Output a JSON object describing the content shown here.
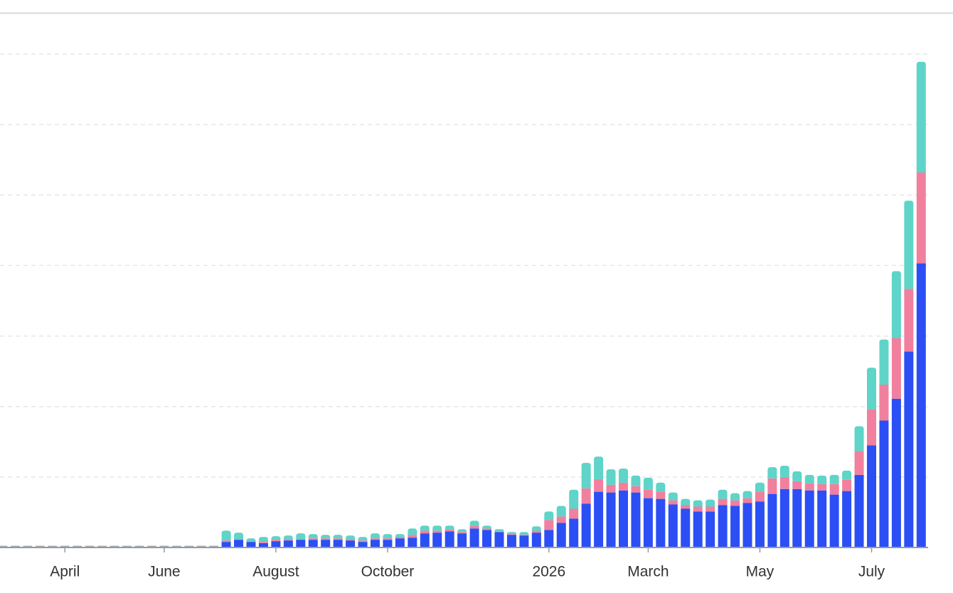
{
  "chart_data": {
    "type": "stacked-bar",
    "categories": [
      null,
      null,
      null,
      null,
      null,
      "April",
      null,
      null,
      null,
      null,
      null,
      null,
      null,
      "June",
      null,
      null,
      null,
      null,
      null,
      null,
      null,
      null,
      "August",
      null,
      null,
      null,
      null,
      null,
      null,
      null,
      null,
      "October",
      null,
      null,
      null,
      null,
      null,
      null,
      null,
      null,
      null,
      null,
      null,
      null,
      "2026",
      null,
      null,
      null,
      null,
      null,
      null,
      null,
      "March",
      null,
      null,
      null,
      null,
      null,
      null,
      null,
      null,
      "May",
      null,
      null,
      null,
      null,
      null,
      null,
      null,
      null,
      "July",
      null,
      null,
      null,
      null
    ],
    "series": [
      {
        "color": "#2b4ff5",
        "values": [
          0.01,
          0.01,
          0.01,
          0.01,
          0.01,
          0.01,
          0.01,
          0.01,
          0.01,
          0.01,
          0.01,
          0.01,
          0.01,
          0.01,
          0.01,
          0.01,
          0.01,
          0.01,
          0.08,
          0.11,
          0.08,
          0.06,
          0.09,
          0.1,
          0.11,
          0.11,
          0.11,
          0.11,
          0.1,
          0.08,
          0.11,
          0.11,
          0.13,
          0.14,
          0.2,
          0.21,
          0.23,
          0.2,
          0.27,
          0.25,
          0.22,
          0.18,
          0.17,
          0.21,
          0.25,
          0.35,
          0.41,
          0.62,
          0.79,
          0.78,
          0.81,
          0.78,
          0.7,
          0.69,
          0.61,
          0.55,
          0.51,
          0.51,
          0.6,
          0.59,
          0.63,
          0.65,
          0.76,
          0.83,
          0.83,
          0.81,
          0.81,
          0.75,
          0.8,
          1.03,
          1.45,
          1.8,
          2.11,
          2.78,
          4.03
        ]
      },
      {
        "color": "#f0809e",
        "values": [
          0.005,
          0.005,
          0.005,
          0.005,
          0.005,
          0.005,
          0.005,
          0.005,
          0.005,
          0.005,
          0.005,
          0.005,
          0.005,
          0.005,
          0.005,
          0.005,
          0.005,
          0.005,
          0.02,
          0.01,
          0.01,
          0.02,
          0.02,
          0.02,
          0.01,
          0.02,
          0.02,
          0.02,
          0.02,
          0.02,
          0.02,
          0.02,
          0.02,
          0.04,
          0.04,
          0.03,
          0.03,
          0.02,
          0.04,
          0.02,
          0.01,
          0.01,
          0.01,
          0.03,
          0.14,
          0.09,
          0.14,
          0.22,
          0.18,
          0.11,
          0.11,
          0.09,
          0.12,
          0.1,
          0.06,
          0.05,
          0.07,
          0.07,
          0.09,
          0.08,
          0.07,
          0.14,
          0.22,
          0.17,
          0.11,
          0.1,
          0.09,
          0.15,
          0.16,
          0.34,
          0.51,
          0.51,
          0.86,
          0.89,
          1.29
        ]
      },
      {
        "color": "#5fd4c8",
        "values": [
          0.01,
          0.01,
          0.01,
          0.01,
          0.01,
          0.01,
          0.01,
          0.01,
          0.01,
          0.01,
          0.01,
          0.01,
          0.01,
          0.01,
          0.01,
          0.01,
          0.01,
          0.01,
          0.14,
          0.09,
          0.04,
          0.07,
          0.05,
          0.05,
          0.08,
          0.06,
          0.05,
          0.05,
          0.05,
          0.05,
          0.07,
          0.06,
          0.04,
          0.09,
          0.07,
          0.07,
          0.05,
          0.04,
          0.07,
          0.04,
          0.03,
          0.03,
          0.04,
          0.06,
          0.12,
          0.15,
          0.27,
          0.36,
          0.32,
          0.22,
          0.2,
          0.15,
          0.17,
          0.13,
          0.11,
          0.09,
          0.09,
          0.1,
          0.13,
          0.1,
          0.1,
          0.13,
          0.16,
          0.16,
          0.14,
          0.12,
          0.12,
          0.13,
          0.13,
          0.35,
          0.59,
          0.64,
          0.95,
          1.25,
          1.57
        ]
      }
    ],
    "ylim": [
      0,
      7
    ],
    "yticks": [
      0,
      1,
      2,
      3,
      4,
      5,
      6,
      7
    ],
    "grid": true
  }
}
